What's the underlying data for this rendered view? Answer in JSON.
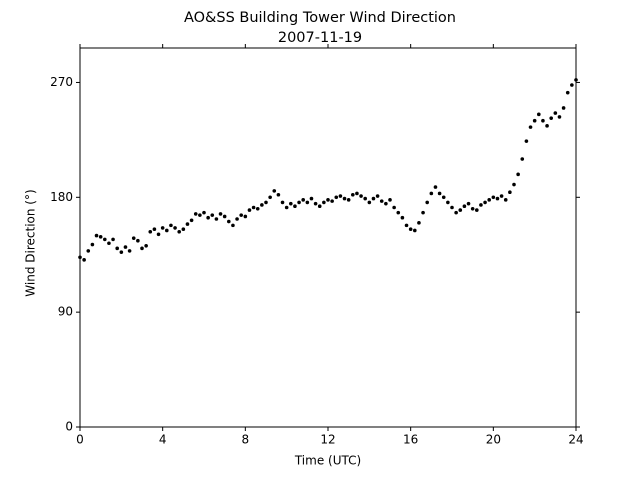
{
  "chart_data": {
    "type": "scatter",
    "title": "AO&SS Building Tower Wind Direction",
    "subtitle": "2007-11-19",
    "x_label": "Time (UTC)",
    "y_label": "Wind Direction (°)",
    "color": "#000000",
    "xlim": [
      0,
      24
    ],
    "xticks": [
      0,
      4,
      8,
      12,
      16,
      20,
      24
    ],
    "ylim": [
      0,
      297
    ],
    "yticks": [
      0,
      90,
      180,
      270
    ],
    "x": [
      0,
      0.2,
      0.4,
      0.6,
      0.8,
      1.0,
      1.2,
      1.4,
      1.6,
      1.8,
      2.0,
      2.2,
      2.4,
      2.6,
      2.8,
      3.0,
      3.2,
      3.4,
      3.6,
      3.8,
      4.0,
      4.2,
      4.4,
      4.6,
      4.8,
      5.0,
      5.2,
      5.4,
      5.6,
      5.8,
      6.0,
      6.2,
      6.4,
      6.6,
      6.8,
      7.0,
      7.2,
      7.4,
      7.6,
      7.8,
      8.0,
      8.2,
      8.4,
      8.6,
      8.8,
      9.0,
      9.2,
      9.4,
      9.6,
      9.8,
      10.0,
      10.2,
      10.4,
      10.6,
      10.8,
      11.0,
      11.2,
      11.4,
      11.6,
      11.8,
      12.0,
      12.2,
      12.4,
      12.6,
      12.8,
      13.0,
      13.2,
      13.4,
      13.6,
      13.8,
      14.0,
      14.2,
      14.4,
      14.6,
      14.8,
      15.0,
      15.2,
      15.4,
      15.6,
      15.8,
      16.0,
      16.2,
      16.4,
      16.6,
      16.8,
      17.0,
      17.2,
      17.4,
      17.6,
      17.8,
      18.0,
      18.2,
      18.4,
      18.6,
      18.8,
      19.0,
      19.2,
      19.4,
      19.6,
      19.8,
      20.0,
      20.2,
      20.4,
      20.6,
      20.8,
      21.0,
      21.2,
      21.4,
      21.6,
      21.8,
      22.0,
      22.2,
      22.4,
      22.6,
      22.8,
      23.0,
      23.2,
      23.4,
      23.6,
      23.8,
      24.0
    ],
    "values": [
      133,
      131,
      138,
      143,
      150,
      149,
      147,
      144,
      147,
      140,
      137,
      141,
      138,
      148,
      146,
      140,
      142,
      153,
      155,
      151,
      156,
      154,
      158,
      156,
      153,
      155,
      159,
      162,
      167,
      166,
      168,
      164,
      166,
      163,
      167,
      165,
      161,
      158,
      163,
      166,
      165,
      170,
      172,
      171,
      174,
      176,
      180,
      185,
      182,
      176,
      172,
      175,
      173,
      176,
      178,
      176,
      179,
      175,
      173,
      176,
      178,
      177,
      180,
      181,
      179,
      178,
      182,
      183,
      181,
      179,
      176,
      179,
      181,
      177,
      175,
      178,
      172,
      168,
      164,
      158,
      155,
      154,
      160,
      168,
      176,
      183,
      188,
      183,
      180,
      176,
      172,
      168,
      170,
      173,
      175,
      171,
      170,
      174,
      176,
      178,
      180,
      179,
      181,
      178,
      184,
      190,
      198,
      210,
      224,
      235,
      240,
      245,
      240,
      236,
      242,
      246,
      243,
      250,
      262,
      268,
      272
    ]
  }
}
